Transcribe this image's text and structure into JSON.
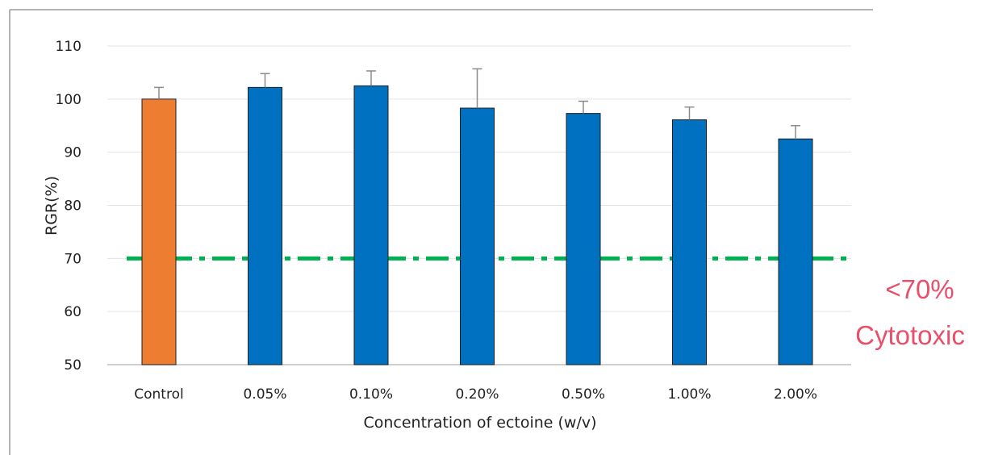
{
  "chart_data": {
    "type": "bar",
    "title": "",
    "xlabel": "Concentration of ectoine (w/v)",
    "ylabel": "RGR(%)",
    "ylim": [
      50,
      110
    ],
    "yticks": [
      50,
      60,
      70,
      80,
      90,
      100,
      110
    ],
    "categories": [
      "Control",
      "0.05%",
      "0.10%",
      "0.20%",
      "0.50%",
      "1.00%",
      "2.00%"
    ],
    "values": [
      100,
      102.2,
      102.5,
      98.3,
      97.3,
      96.1,
      92.5
    ],
    "error_upper": [
      2.2,
      2.6,
      2.8,
      7.4,
      2.3,
      2.4,
      2.5
    ],
    "bar_colors": [
      "#ed7d31",
      "#0070c0",
      "#0070c0",
      "#0070c0",
      "#0070c0",
      "#0070c0",
      "#0070c0"
    ],
    "grid": true,
    "reference_line": {
      "y": 70,
      "color": "#00b050",
      "style": "dash-dot"
    },
    "annotation": {
      "lines": [
        "<70%",
        "Cytotoxic"
      ],
      "color": "#e8506a"
    }
  }
}
